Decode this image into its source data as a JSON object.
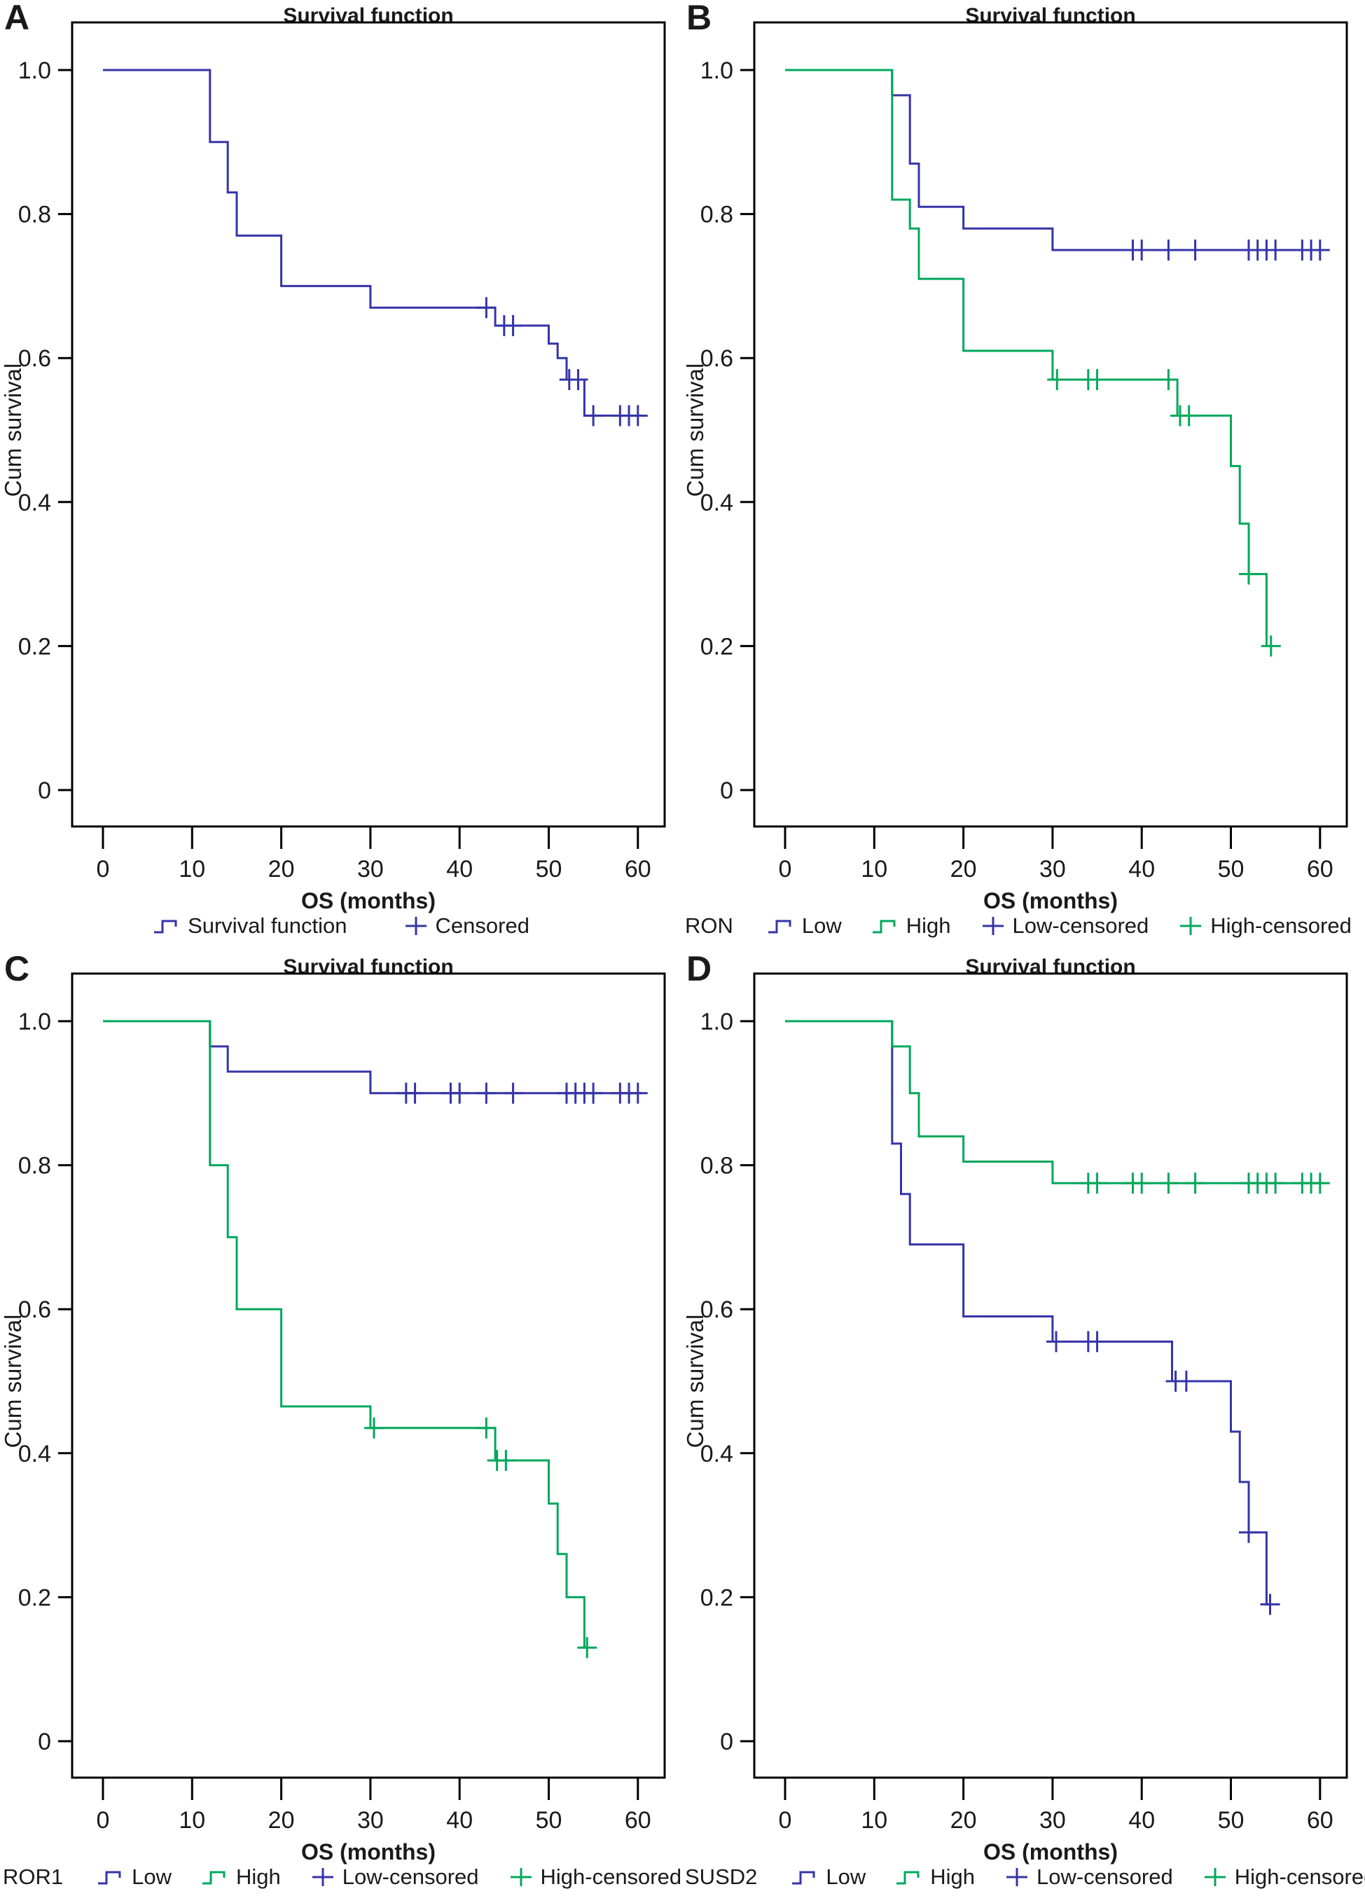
{
  "figure": {
    "title": "Survival function",
    "xlabel": "OS (months)",
    "ylabel": "Cum survival"
  },
  "colors": {
    "blue": "#3534A8",
    "green": "#00A85B",
    "axis": "#000000",
    "text": "#1a1a1a"
  },
  "chart_data": [
    {
      "panel": "A",
      "type": "km_step",
      "title": "Survival function",
      "xlabel": "OS (months)",
      "ylabel": "Cum survival",
      "xlim": [
        0,
        63
      ],
      "ylim": [
        0,
        1.05
      ],
      "x_ticks": [
        0,
        10,
        20,
        30,
        40,
        50,
        60
      ],
      "y_ticks": [
        {
          "label": "1.0",
          "value": 1.0
        },
        {
          "label": "0.8",
          "value": 0.8
        },
        {
          "label": "0.6",
          "value": 0.6
        },
        {
          "label": "0.4",
          "value": 0.4
        },
        {
          "label": "0.2",
          "value": 0.2
        },
        {
          "label": "0",
          "value": 0.0
        }
      ],
      "legend": {
        "prefix": "",
        "items": [
          {
            "label": "Survival function",
            "color": "blue",
            "symbol": "step"
          },
          {
            "label": "Censored",
            "color": "blue",
            "symbol": "plus"
          }
        ]
      },
      "series": [
        {
          "name": "Survival function",
          "color": "blue",
          "steps": [
            [
              0,
              1.0
            ],
            [
              12,
              0.9
            ],
            [
              14,
              0.83
            ],
            [
              15,
              0.77
            ],
            [
              20,
              0.7
            ],
            [
              30,
              0.67
            ],
            [
              44,
              0.645
            ],
            [
              50,
              0.62
            ],
            [
              51,
              0.6
            ],
            [
              52,
              0.57
            ],
            [
              54,
              0.52
            ]
          ],
          "end": 60.5,
          "censors": [
            [
              43,
              0.67
            ],
            [
              45,
              0.645
            ],
            [
              46,
              0.645
            ],
            [
              52.3,
              0.57
            ],
            [
              53.3,
              0.57
            ],
            [
              55,
              0.52
            ],
            [
              58,
              0.52
            ],
            [
              59,
              0.52
            ],
            [
              60,
              0.52
            ]
          ]
        }
      ]
    },
    {
      "panel": "B",
      "type": "km_step",
      "title": "Survival function",
      "xlabel": "OS (months)",
      "ylabel": "Cum survival",
      "xlim": [
        0,
        63
      ],
      "ylim": [
        0,
        1.05
      ],
      "x_ticks": [
        0,
        10,
        20,
        30,
        40,
        50,
        60
      ],
      "y_ticks": [
        {
          "label": "1.0",
          "value": 1.0
        },
        {
          "label": "0.8",
          "value": 0.8
        },
        {
          "label": "0.6",
          "value": 0.6
        },
        {
          "label": "0.4",
          "value": 0.4
        },
        {
          "label": "0.2",
          "value": 0.2
        },
        {
          "label": "0",
          "value": 0.0
        }
      ],
      "legend": {
        "prefix": "RON",
        "items": [
          {
            "label": "Low",
            "color": "blue",
            "symbol": "step"
          },
          {
            "label": "High",
            "color": "green",
            "symbol": "step"
          },
          {
            "label": "Low-censored",
            "color": "blue",
            "symbol": "plus"
          },
          {
            "label": "High-censored",
            "color": "green",
            "symbol": "plus"
          }
        ]
      },
      "series": [
        {
          "name": "Low",
          "color": "blue",
          "steps": [
            [
              0,
              1.0
            ],
            [
              12,
              0.965
            ],
            [
              14,
              0.87
            ],
            [
              15,
              0.81
            ],
            [
              20,
              0.78
            ],
            [
              30,
              0.75
            ]
          ],
          "end": 60.5,
          "censors": [
            [
              39,
              0.75
            ],
            [
              40,
              0.75
            ],
            [
              43,
              0.75
            ],
            [
              46,
              0.75
            ],
            [
              52,
              0.75
            ],
            [
              53,
              0.75
            ],
            [
              54,
              0.75
            ],
            [
              55,
              0.75
            ],
            [
              58,
              0.75
            ],
            [
              59,
              0.75
            ],
            [
              60,
              0.75
            ]
          ]
        },
        {
          "name": "High",
          "color": "green",
          "steps": [
            [
              0,
              1.0
            ],
            [
              12,
              0.82
            ],
            [
              14,
              0.78
            ],
            [
              15,
              0.71
            ],
            [
              20,
              0.61
            ],
            [
              30,
              0.57
            ],
            [
              44,
              0.52
            ],
            [
              50,
              0.45
            ],
            [
              51,
              0.37
            ],
            [
              52,
              0.3
            ],
            [
              54,
              0.2
            ]
          ],
          "end": 54.5,
          "censors": [
            [
              30.5,
              0.57
            ],
            [
              34,
              0.57
            ],
            [
              35,
              0.57
            ],
            [
              43,
              0.57
            ],
            [
              44.3,
              0.52
            ],
            [
              45.3,
              0.52
            ],
            [
              52,
              0.3
            ],
            [
              54.5,
              0.2
            ]
          ]
        }
      ]
    },
    {
      "panel": "C",
      "type": "km_step",
      "title": "Survival function",
      "xlabel": "OS (months)",
      "ylabel": "Cum survival",
      "xlim": [
        0,
        63
      ],
      "ylim": [
        0,
        1.05
      ],
      "x_ticks": [
        0,
        10,
        20,
        30,
        40,
        50,
        60
      ],
      "y_ticks": [
        {
          "label": "1.0",
          "value": 1.0
        },
        {
          "label": "0.8",
          "value": 0.8
        },
        {
          "label": "0.6",
          "value": 0.6
        },
        {
          "label": "0.4",
          "value": 0.4
        },
        {
          "label": "0.2",
          "value": 0.2
        },
        {
          "label": "0",
          "value": 0.0
        }
      ],
      "legend": {
        "prefix": "ROR1",
        "items": [
          {
            "label": "Low",
            "color": "blue",
            "symbol": "step"
          },
          {
            "label": "High",
            "color": "green",
            "symbol": "step"
          },
          {
            "label": "Low-censored",
            "color": "blue",
            "symbol": "plus"
          },
          {
            "label": "High-censored",
            "color": "green",
            "symbol": "plus"
          }
        ]
      },
      "series": [
        {
          "name": "Low",
          "color": "blue",
          "steps": [
            [
              0,
              1.0
            ],
            [
              12,
              0.965
            ],
            [
              14,
              0.93
            ],
            [
              30,
              0.9
            ]
          ],
          "end": 60.5,
          "censors": [
            [
              34,
              0.9
            ],
            [
              35,
              0.9
            ],
            [
              39,
              0.9
            ],
            [
              40,
              0.9
            ],
            [
              43,
              0.9
            ],
            [
              46,
              0.9
            ],
            [
              52,
              0.9
            ],
            [
              53,
              0.9
            ],
            [
              54,
              0.9
            ],
            [
              55,
              0.9
            ],
            [
              58,
              0.9
            ],
            [
              59,
              0.9
            ],
            [
              60,
              0.9
            ]
          ]
        },
        {
          "name": "High",
          "color": "green",
          "steps": [
            [
              0,
              1.0
            ],
            [
              12,
              0.8
            ],
            [
              14,
              0.7
            ],
            [
              15,
              0.6
            ],
            [
              20,
              0.465
            ],
            [
              30,
              0.435
            ],
            [
              44,
              0.39
            ],
            [
              50,
              0.33
            ],
            [
              51,
              0.26
            ],
            [
              52,
              0.2
            ],
            [
              54,
              0.13
            ]
          ],
          "end": 54.3,
          "censors": [
            [
              30.4,
              0.435
            ],
            [
              43,
              0.435
            ],
            [
              44.2,
              0.39
            ],
            [
              45.2,
              0.39
            ],
            [
              54.3,
              0.13
            ]
          ]
        }
      ]
    },
    {
      "panel": "D",
      "type": "km_step",
      "title": "Survival function",
      "xlabel": "OS (months)",
      "ylabel": "Cum survival",
      "xlim": [
        0,
        63
      ],
      "ylim": [
        0,
        1.05
      ],
      "x_ticks": [
        0,
        10,
        20,
        30,
        40,
        50,
        60
      ],
      "y_ticks": [
        {
          "label": "1.0",
          "value": 1.0
        },
        {
          "label": "0.8",
          "value": 0.8
        },
        {
          "label": "0.6",
          "value": 0.6
        },
        {
          "label": "0.4",
          "value": 0.4
        },
        {
          "label": "0.2",
          "value": 0.2
        },
        {
          "label": "0",
          "value": 0.0
        }
      ],
      "legend": {
        "prefix": "SUSD2",
        "items": [
          {
            "label": "Low",
            "color": "blue",
            "symbol": "step"
          },
          {
            "label": "High",
            "color": "green",
            "symbol": "step"
          },
          {
            "label": "Low-censored",
            "color": "blue",
            "symbol": "plus"
          },
          {
            "label": "High-censored",
            "color": "green",
            "symbol": "plus"
          }
        ]
      },
      "series": [
        {
          "name": "Low",
          "color": "blue",
          "steps": [
            [
              0,
              1.0
            ],
            [
              12,
              0.83
            ],
            [
              13,
              0.76
            ],
            [
              14,
              0.69
            ],
            [
              20,
              0.59
            ],
            [
              30,
              0.555
            ],
            [
              43.4,
              0.5
            ],
            [
              50,
              0.43
            ],
            [
              51,
              0.36
            ],
            [
              52,
              0.29
            ],
            [
              54,
              0.19
            ]
          ],
          "end": 54.4,
          "censors": [
            [
              30.4,
              0.555
            ],
            [
              34,
              0.555
            ],
            [
              35,
              0.555
            ],
            [
              43.8,
              0.5
            ],
            [
              45,
              0.5
            ],
            [
              52,
              0.29
            ],
            [
              54.4,
              0.19
            ]
          ]
        },
        {
          "name": "High",
          "color": "green",
          "steps": [
            [
              0,
              1.0
            ],
            [
              12,
              0.965
            ],
            [
              14,
              0.9
            ],
            [
              15,
              0.84
            ],
            [
              20,
              0.805
            ],
            [
              30,
              0.775
            ]
          ],
          "end": 60.5,
          "censors": [
            [
              34,
              0.775
            ],
            [
              35,
              0.775
            ],
            [
              39,
              0.775
            ],
            [
              40,
              0.775
            ],
            [
              43,
              0.775
            ],
            [
              46,
              0.775
            ],
            [
              52,
              0.775
            ],
            [
              53,
              0.775
            ],
            [
              54,
              0.775
            ],
            [
              55,
              0.775
            ],
            [
              58,
              0.775
            ],
            [
              59,
              0.775
            ],
            [
              60,
              0.775
            ]
          ]
        }
      ]
    }
  ]
}
